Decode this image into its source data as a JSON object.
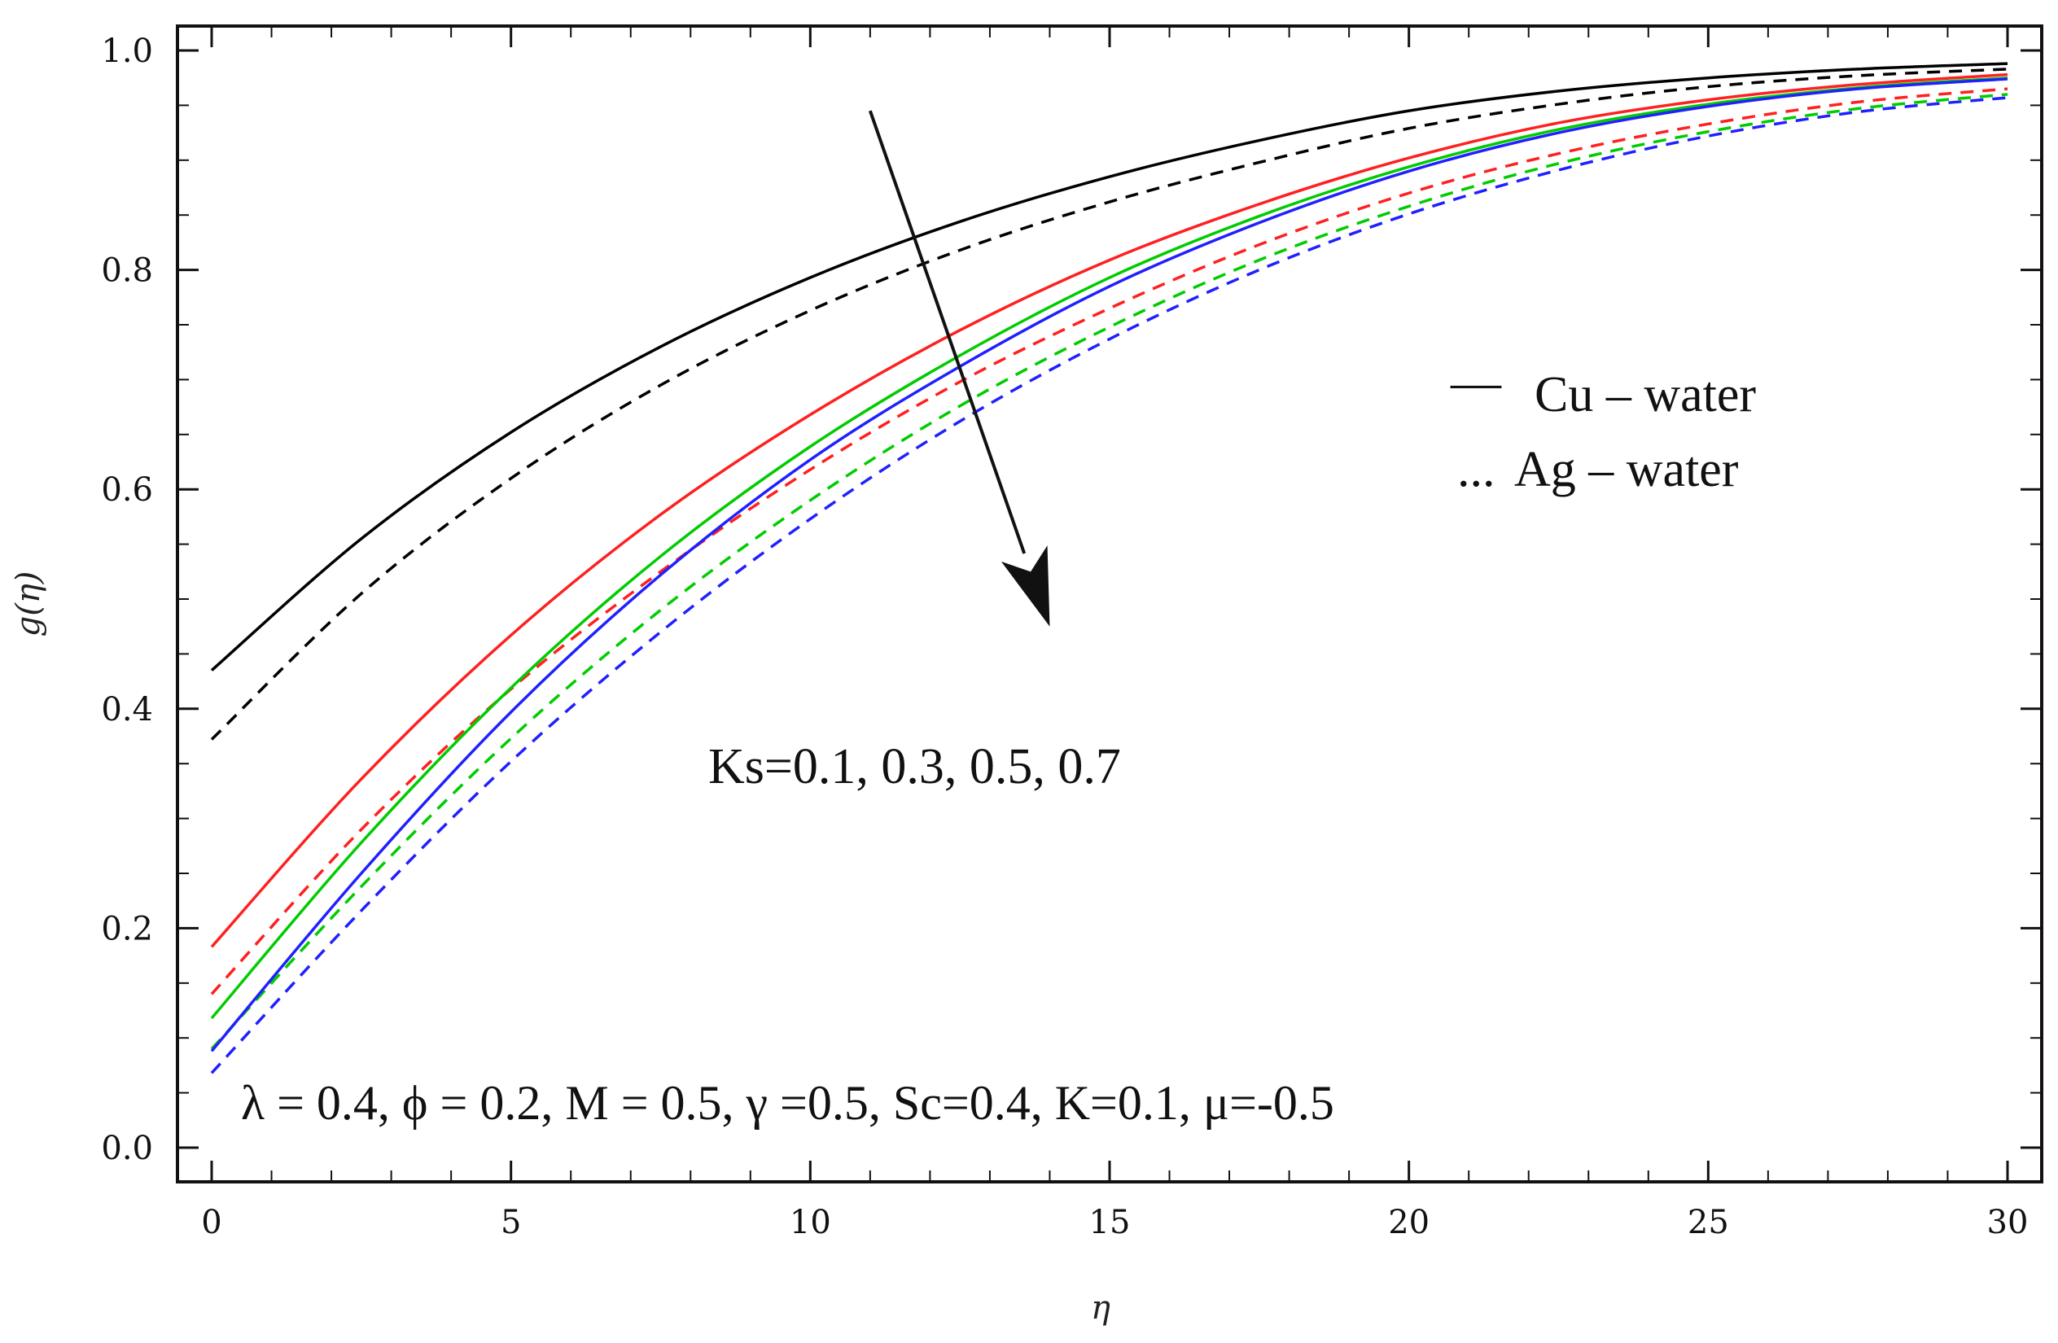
{
  "chart_data": {
    "type": "line",
    "title": "",
    "xlabel": "η",
    "ylabel": "g(η)",
    "xlim": [
      0,
      30
    ],
    "ylim": [
      0,
      1
    ],
    "xticks": [
      0,
      5,
      10,
      15,
      20,
      25,
      30
    ],
    "yticks": [
      0,
      0.2,
      0.4,
      0.6,
      0.8,
      1.0
    ],
    "xtick_labels": [
      "0",
      "5",
      "10",
      "15",
      "20",
      "25",
      "30"
    ],
    "ytick_labels": [
      "0.0",
      "0.2",
      "0.4",
      "0.6",
      "0.8",
      "1.0"
    ],
    "x": [
      0,
      2.5,
      5,
      7.5,
      10,
      12.5,
      15,
      17.5,
      20,
      22.5,
      25,
      27.5,
      30
    ],
    "series": [
      {
        "name": "Cu - water, Ks=0.1",
        "color": "#000000",
        "dash": false,
        "values": [
          0.435,
          0.555,
          0.652,
          0.73,
          0.793,
          0.844,
          0.885,
          0.918,
          0.945,
          0.963,
          0.975,
          0.983,
          0.988
        ]
      },
      {
        "name": "Ag - water, Ks=0.1",
        "color": "#000000",
        "dash": true,
        "values": [
          0.372,
          0.505,
          0.61,
          0.695,
          0.763,
          0.818,
          0.862,
          0.898,
          0.929,
          0.951,
          0.967,
          0.977,
          0.983
        ]
      },
      {
        "name": "Cu - water, Ks=0.3",
        "color": "#ff2020",
        "dash": false,
        "values": [
          0.183,
          0.336,
          0.467,
          0.577,
          0.668,
          0.745,
          0.809,
          0.86,
          0.902,
          0.934,
          0.955,
          0.969,
          0.978
        ]
      },
      {
        "name": "Ag - water, Ks=0.3",
        "color": "#ff2020",
        "dash": true,
        "values": [
          0.14,
          0.29,
          0.418,
          0.525,
          0.618,
          0.698,
          0.765,
          0.823,
          0.87,
          0.906,
          0.933,
          0.953,
          0.965
        ]
      },
      {
        "name": "Cu - water, Ks=0.5",
        "color": "#00cc00",
        "dash": false,
        "values": [
          0.118,
          0.278,
          0.419,
          0.539,
          0.639,
          0.722,
          0.793,
          0.849,
          0.894,
          0.928,
          0.951,
          0.966,
          0.975
        ]
      },
      {
        "name": "Ag - water, Ks=0.5",
        "color": "#00cc00",
        "dash": true,
        "values": [
          0.09,
          0.238,
          0.373,
          0.49,
          0.59,
          0.676,
          0.748,
          0.809,
          0.858,
          0.897,
          0.926,
          0.947,
          0.96
        ]
      },
      {
        "name": "Cu - water, Ks=0.7",
        "color": "#2020ff",
        "dash": false,
        "values": [
          0.088,
          0.25,
          0.397,
          0.522,
          0.627,
          0.712,
          0.785,
          0.843,
          0.89,
          0.925,
          0.949,
          0.965,
          0.974
        ]
      },
      {
        "name": "Ag - water, Ks=0.7",
        "color": "#2020ff",
        "dash": true,
        "values": [
          0.068,
          0.216,
          0.352,
          0.47,
          0.573,
          0.662,
          0.737,
          0.8,
          0.851,
          0.891,
          0.922,
          0.944,
          0.957
        ]
      }
    ],
    "legend": [
      {
        "label": "Cu – water",
        "marker": "—",
        "style": "solid"
      },
      {
        "label": "Ag – water",
        "marker": "...",
        "style": "dashed"
      }
    ],
    "annotations": {
      "ks_label": "Ks=0.1, 0.3, 0.5, 0.7",
      "params_label": "λ = 0.4, ϕ = 0.2, M = 0.5, γ =0.5, Sc=0.4, K=0.1, μ=-0.5",
      "arrow": {
        "from": [
          11,
          0.945
        ],
        "to": [
          14,
          0.475
        ],
        "meaning": "increasing Ks"
      }
    }
  }
}
